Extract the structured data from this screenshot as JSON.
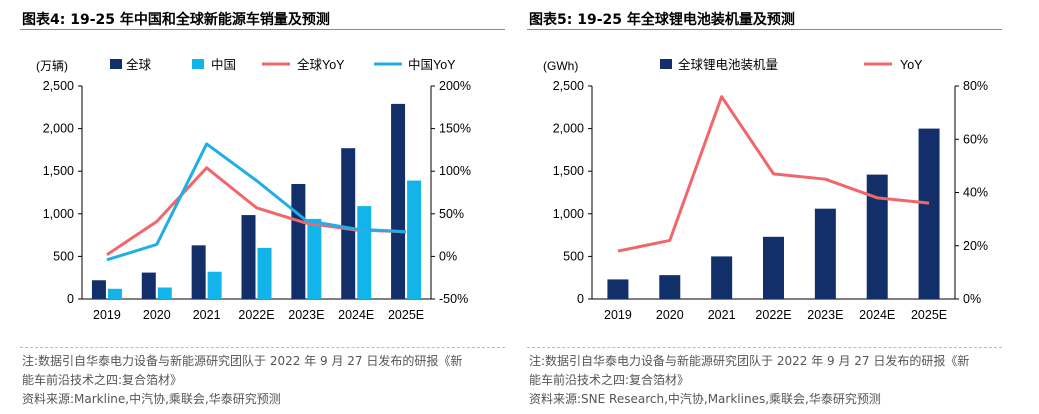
{
  "colors": {
    "dark_bar": "#132f6a",
    "light_bar": "#12b4ea",
    "red_line": "#f0666a",
    "blue_line": "#21aee6",
    "axis_text": "#000000"
  },
  "left": {
    "title": "图表4:  19-25 年中国和全球新能源车销量及预测",
    "note_line1": "注:数据引自华泰电力设备与新能源研究团队于 2022 年 9 月 27 日发布的研报《新",
    "note_line2": "能车前沿技术之四:复合箔材》",
    "source": "资料来源:Markline,中汽协,乘联会,华泰研究预测",
    "unit_label": "(万辆)"
  },
  "right": {
    "title": "图表5:  19-25 年全球锂电池装机量及预测",
    "note_line1": "注:数据引自华泰电力设备与新能源研究团队于 2022 年 9 月 27 日发布的研报《新",
    "note_line2": "能车前沿技术之四:复合箔材》",
    "source": "资料来源:SNE Research,中汽协,Marklines,乘联会,华泰研究预测",
    "unit_label": "(GWh)"
  },
  "chart_data": [
    {
      "type": "bar",
      "categories": [
        "2019",
        "2020",
        "2021",
        "2022E",
        "2023E",
        "2024E",
        "2025E"
      ],
      "series": [
        {
          "name": "全球",
          "kind": "bar",
          "axis": "left",
          "values": [
            220,
            310,
            630,
            985,
            1350,
            1770,
            2290
          ]
        },
        {
          "name": "中国",
          "kind": "bar",
          "axis": "left",
          "values": [
            120,
            135,
            320,
            600,
            940,
            1090,
            1390
          ]
        },
        {
          "name": "全球YoY",
          "kind": "line",
          "axis": "right",
          "values": [
            0.02,
            0.41,
            1.04,
            0.57,
            0.39,
            0.31,
            0.29
          ]
        },
        {
          "name": "中国YoY",
          "kind": "line",
          "axis": "right",
          "values": [
            -0.04,
            0.14,
            1.32,
            0.89,
            0.42,
            0.32,
            0.29
          ]
        }
      ],
      "y_left": {
        "min": 0,
        "max": 2500,
        "ticks": [
          "0",
          "500",
          "1,000",
          "1,500",
          "2,000",
          "2,500"
        ]
      },
      "y_right": {
        "min": -0.5,
        "max": 2.0,
        "ticks": [
          "-50%",
          "0%",
          "50%",
          "100%",
          "150%",
          "200%"
        ]
      },
      "legend": "top",
      "grid": false
    },
    {
      "type": "bar",
      "categories": [
        "2019",
        "2020",
        "2021",
        "2022E",
        "2023E",
        "2024E",
        "2025E"
      ],
      "series": [
        {
          "name": "全球锂电池装机量",
          "kind": "bar",
          "axis": "left",
          "values": [
            230,
            280,
            500,
            730,
            1060,
            1460,
            2000
          ]
        },
        {
          "name": "YoY",
          "kind": "line",
          "axis": "right",
          "values": [
            0.18,
            0.22,
            0.76,
            0.47,
            0.45,
            0.38,
            0.36
          ]
        }
      ],
      "y_left": {
        "min": 0,
        "max": 2500,
        "ticks": [
          "0",
          "500",
          "1,000",
          "1,500",
          "2,000",
          "2,500"
        ]
      },
      "y_right": {
        "min": 0,
        "max": 0.8,
        "ticks": [
          "0%",
          "20%",
          "40%",
          "60%",
          "80%"
        ]
      },
      "legend": "top",
      "grid": false
    }
  ]
}
